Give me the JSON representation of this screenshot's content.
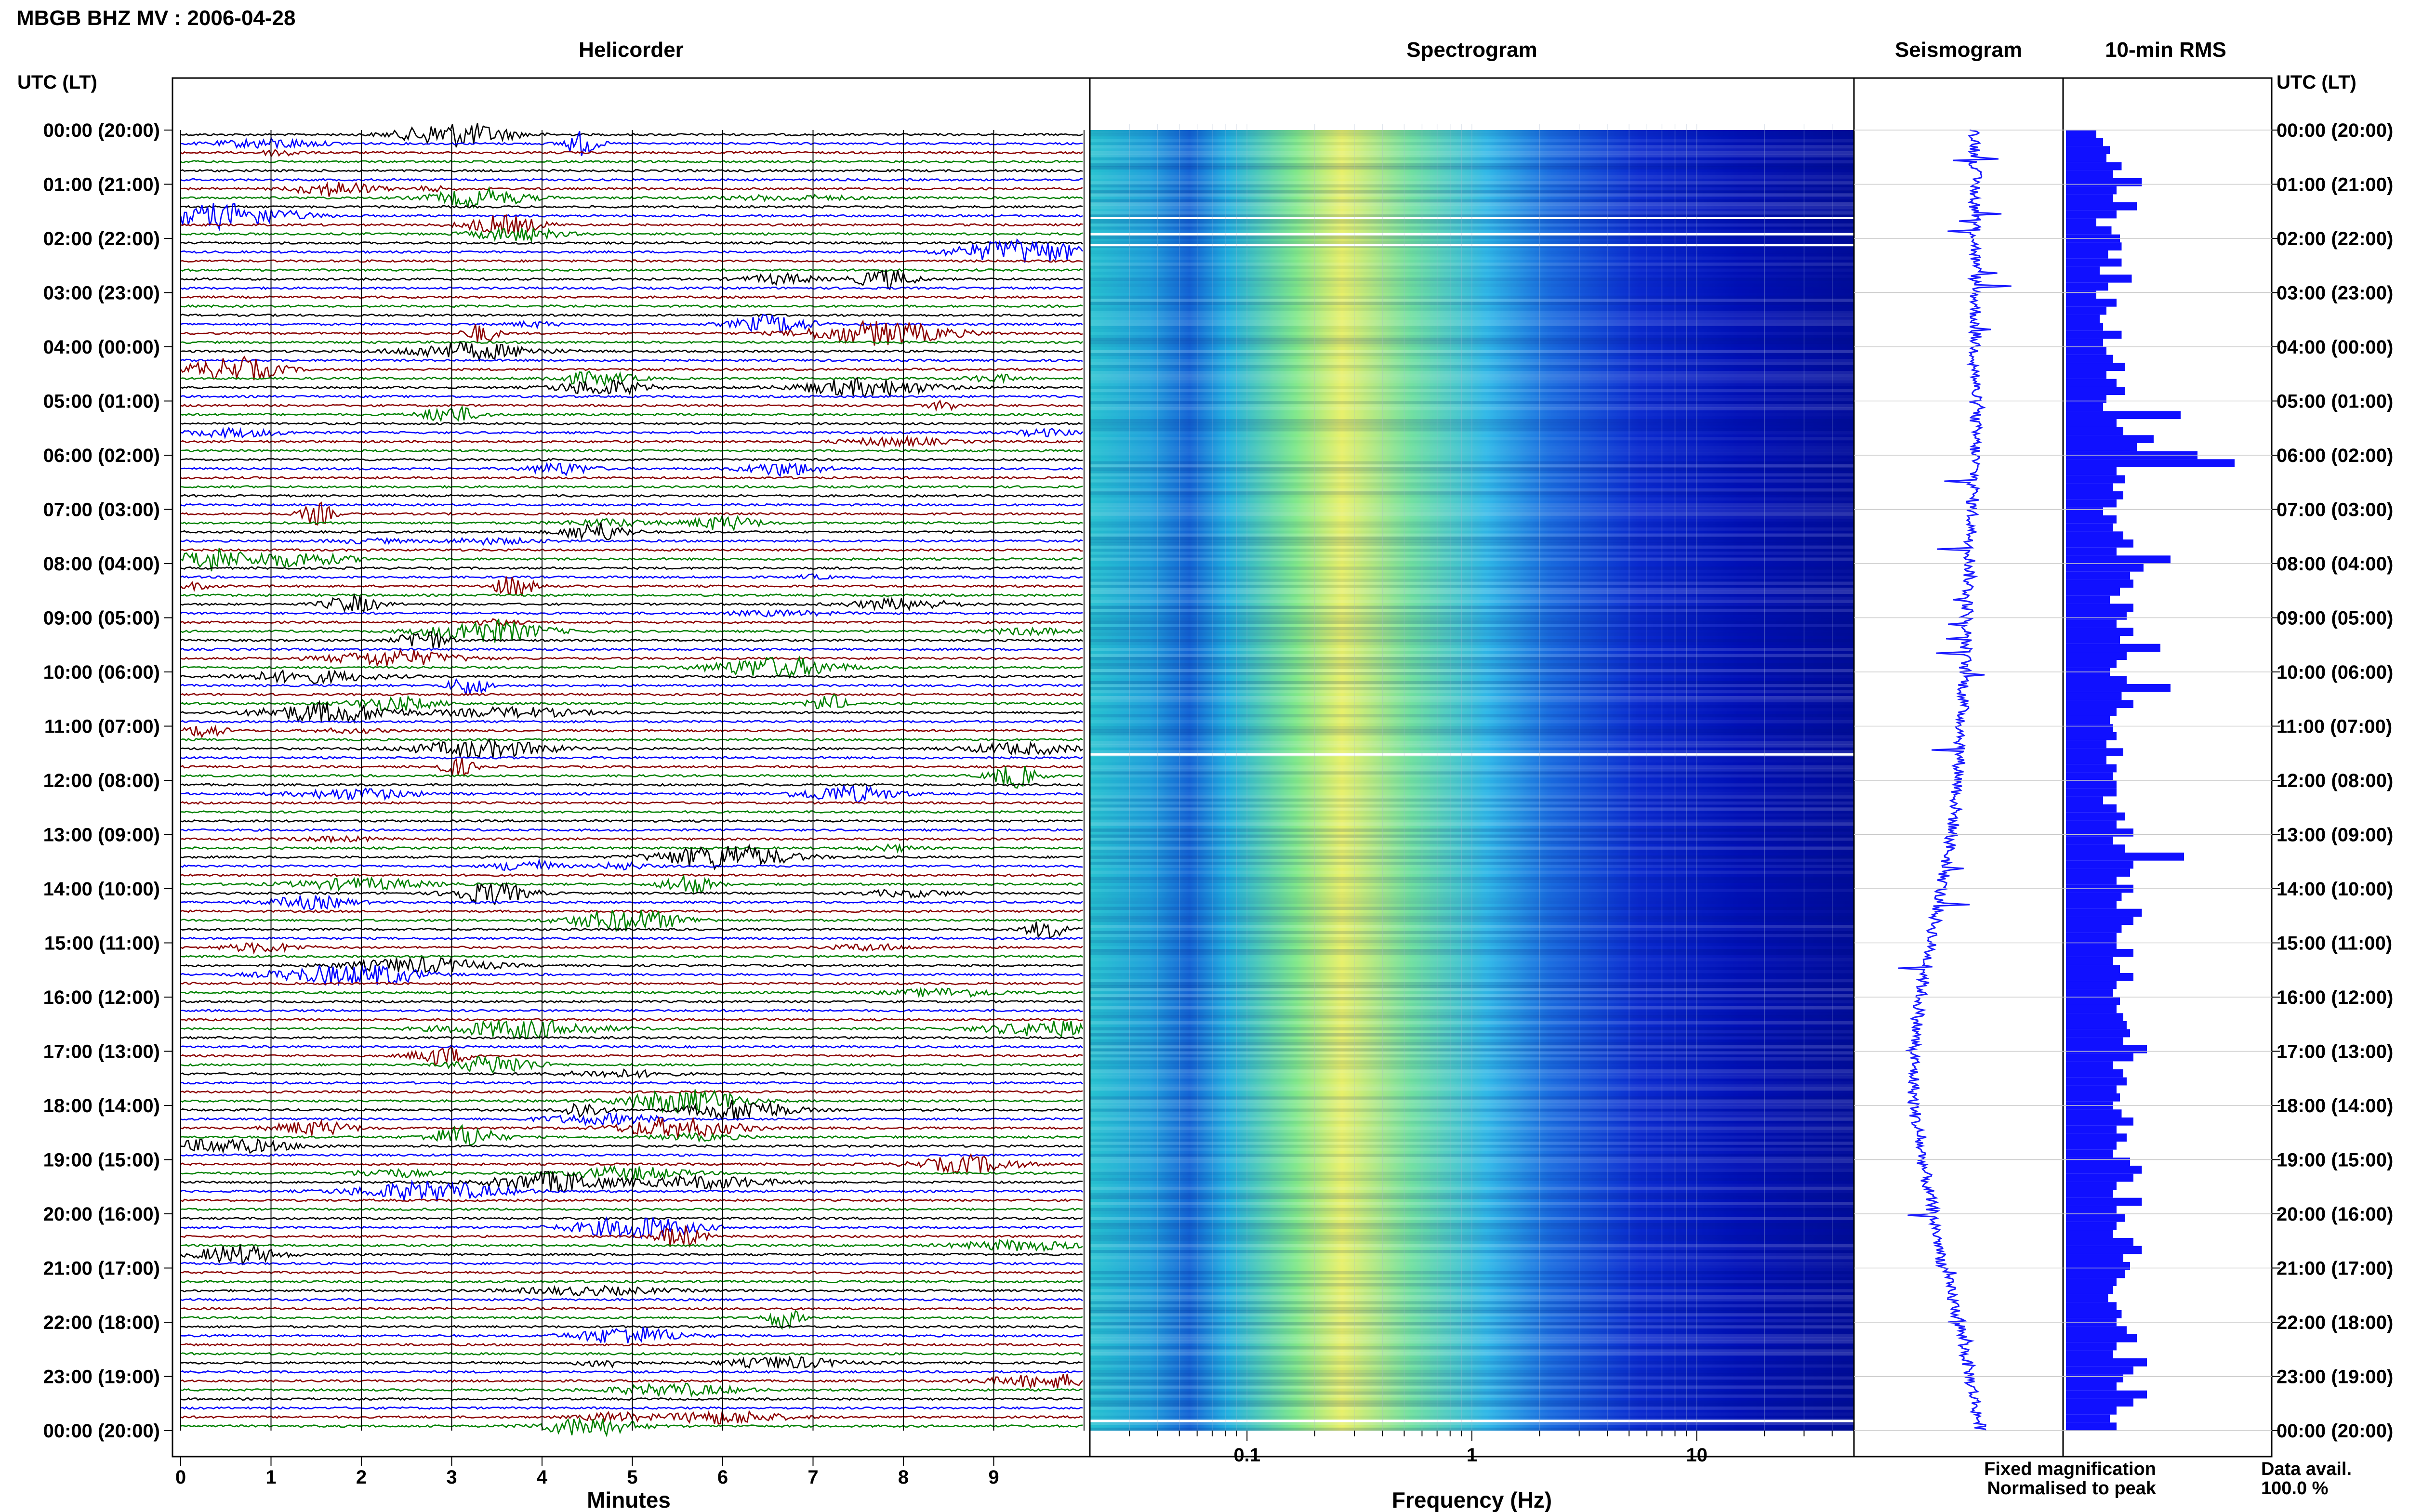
{
  "title": "MBGB BHZ MV : 2006-04-28",
  "panels": {
    "helicorder": "Helicorder",
    "spectrogram": "Spectrogram",
    "seismogram": "Seismogram",
    "rms": "10-min RMS"
  },
  "axis": {
    "time_header_left": "UTC (LT)",
    "time_header_right": "UTC (LT)",
    "minutes_label": "Minutes",
    "frequency_label": "Frequency (Hz)"
  },
  "legend": {
    "fixed": "Fixed magnification",
    "normalised": "Normalised to peak",
    "fixed_color": "#0000ff",
    "normalised_color": "#ff0000"
  },
  "availability": {
    "label": "Data avail.",
    "value": "100.0 %"
  },
  "chart_data": {
    "type": "heatmap",
    "time_labels": [
      "00:00 (20:00)",
      "01:00 (21:00)",
      "02:00 (22:00)",
      "03:00 (23:00)",
      "04:00 (00:00)",
      "05:00 (01:00)",
      "06:00 (02:00)",
      "07:00 (03:00)",
      "08:00 (04:00)",
      "09:00 (05:00)",
      "10:00 (06:00)",
      "11:00 (07:00)",
      "12:00 (08:00)",
      "13:00 (09:00)",
      "14:00 (10:00)",
      "15:00 (11:00)",
      "16:00 (12:00)",
      "17:00 (13:00)",
      "18:00 (14:00)",
      "19:00 (15:00)",
      "20:00 (16:00)",
      "21:00 (17:00)",
      "22:00 (18:00)",
      "23:00 (19:00)",
      "00:00 (20:00)"
    ],
    "minute_ticks": [
      "0",
      "1",
      "2",
      "3",
      "4",
      "5",
      "6",
      "7",
      "8",
      "9"
    ],
    "frequency_ticks": [
      "0.1",
      "1",
      "10"
    ],
    "frequency_range_hz": [
      0.02,
      50
    ],
    "trace_colors": [
      "#000000",
      "#0000ff",
      "#8b0000",
      "#008000"
    ],
    "traces_per_hour": 6,
    "rms_10min": [
      0.18,
      0.22,
      0.26,
      0.24,
      0.33,
      0.28,
      0.45,
      0.3,
      0.28,
      0.42,
      0.3,
      0.18,
      0.27,
      0.32,
      0.33,
      0.25,
      0.33,
      0.2,
      0.39,
      0.25,
      0.18,
      0.3,
      0.24,
      0.2,
      0.22,
      0.33,
      0.22,
      0.24,
      0.28,
      0.35,
      0.24,
      0.3,
      0.35,
      0.24,
      0.22,
      0.68,
      0.3,
      0.34,
      0.52,
      0.42,
      0.78,
      1.0,
      0.3,
      0.35,
      0.28,
      0.34,
      0.3,
      0.22,
      0.3,
      0.28,
      0.34,
      0.4,
      0.3,
      0.62,
      0.46,
      0.38,
      0.4,
      0.32,
      0.26,
      0.4,
      0.36,
      0.3,
      0.4,
      0.32,
      0.56,
      0.36,
      0.3,
      0.26,
      0.36,
      0.62,
      0.33,
      0.4,
      0.3,
      0.26,
      0.28,
      0.3,
      0.24,
      0.34,
      0.24,
      0.3,
      0.28,
      0.3,
      0.3,
      0.22,
      0.3,
      0.35,
      0.3,
      0.4,
      0.28,
      0.35,
      0.7,
      0.4,
      0.38,
      0.3,
      0.4,
      0.33,
      0.3,
      0.45,
      0.4,
      0.33,
      0.3,
      0.3,
      0.4,
      0.28,
      0.32,
      0.4,
      0.3,
      0.28,
      0.32,
      0.3,
      0.34,
      0.36,
      0.38,
      0.34,
      0.48,
      0.4,
      0.28,
      0.34,
      0.36,
      0.3,
      0.32,
      0.28,
      0.33,
      0.4,
      0.3,
      0.36,
      0.3,
      0.28,
      0.38,
      0.45,
      0.4,
      0.3,
      0.28,
      0.45,
      0.3,
      0.35,
      0.3,
      0.28,
      0.4,
      0.45,
      0.34,
      0.38,
      0.35,
      0.3,
      0.28,
      0.25,
      0.3,
      0.33,
      0.3,
      0.36,
      0.42,
      0.3,
      0.28,
      0.48,
      0.4,
      0.34,
      0.3,
      0.48,
      0.4,
      0.3,
      0.26,
      0.3
    ],
    "seismogram_offset": [
      0.0,
      0.0,
      0.0,
      0.0,
      0.0,
      0.0,
      0.0,
      -0.03,
      -0.05,
      -0.08,
      -0.1,
      -0.13,
      -0.16,
      -0.22,
      -0.32,
      -0.42,
      -0.52,
      -0.58,
      -0.58,
      -0.5,
      -0.4,
      -0.3,
      -0.15,
      -0.05,
      0.05
    ]
  }
}
